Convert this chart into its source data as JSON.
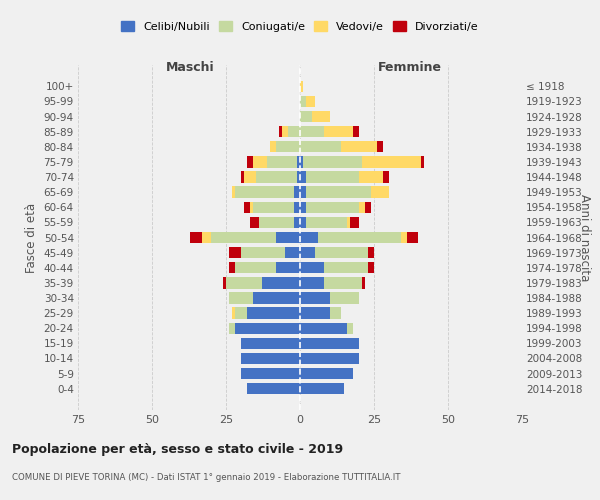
{
  "age_groups": [
    "0-4",
    "5-9",
    "10-14",
    "15-19",
    "20-24",
    "25-29",
    "30-34",
    "35-39",
    "40-44",
    "45-49",
    "50-54",
    "55-59",
    "60-64",
    "65-69",
    "70-74",
    "75-79",
    "80-84",
    "85-89",
    "90-94",
    "95-99",
    "100+"
  ],
  "birth_years": [
    "2014-2018",
    "2009-2013",
    "2004-2008",
    "1999-2003",
    "1994-1998",
    "1989-1993",
    "1984-1988",
    "1979-1983",
    "1974-1978",
    "1969-1973",
    "1964-1968",
    "1959-1963",
    "1954-1958",
    "1949-1953",
    "1944-1948",
    "1939-1943",
    "1934-1938",
    "1929-1933",
    "1924-1928",
    "1919-1923",
    "≤ 1918"
  ],
  "males": {
    "celibi": [
      18,
      20,
      20,
      20,
      22,
      18,
      16,
      13,
      8,
      5,
      8,
      2,
      2,
      2,
      1,
      1,
      0,
      0,
      0,
      0,
      0
    ],
    "coniugati": [
      0,
      0,
      0,
      0,
      2,
      4,
      8,
      12,
      14,
      15,
      22,
      12,
      14,
      20,
      14,
      10,
      8,
      4,
      0,
      0,
      0
    ],
    "vedovi": [
      0,
      0,
      0,
      0,
      0,
      1,
      0,
      0,
      0,
      0,
      3,
      0,
      1,
      1,
      4,
      5,
      2,
      2,
      0,
      0,
      0
    ],
    "divorziati": [
      0,
      0,
      0,
      0,
      0,
      0,
      0,
      1,
      2,
      4,
      4,
      3,
      2,
      0,
      1,
      2,
      0,
      1,
      0,
      0,
      0
    ]
  },
  "females": {
    "nubili": [
      15,
      18,
      20,
      20,
      16,
      10,
      10,
      8,
      8,
      5,
      6,
      2,
      2,
      2,
      2,
      1,
      0,
      0,
      0,
      0,
      0
    ],
    "coniugate": [
      0,
      0,
      0,
      0,
      2,
      4,
      10,
      13,
      15,
      18,
      28,
      14,
      18,
      22,
      18,
      20,
      14,
      8,
      4,
      2,
      0
    ],
    "vedove": [
      0,
      0,
      0,
      0,
      0,
      0,
      0,
      0,
      0,
      0,
      2,
      1,
      2,
      6,
      8,
      20,
      12,
      10,
      6,
      3,
      1
    ],
    "divorziate": [
      0,
      0,
      0,
      0,
      0,
      0,
      0,
      1,
      2,
      2,
      4,
      3,
      2,
      0,
      2,
      1,
      2,
      2,
      0,
      0,
      0
    ]
  },
  "colors": {
    "celibi": "#4472C4",
    "coniugati": "#C5D9A0",
    "vedovi": "#FFD966",
    "divorziati": "#C0000C"
  },
  "xlim": 75,
  "title": "Popolazione per età, sesso e stato civile - 2019",
  "subtitle": "COMUNE DI PIEVE TORINA (MC) - Dati ISTAT 1° gennaio 2019 - Elaborazione TUTTITALIA.IT",
  "ylabel_left": "Fasce di età",
  "ylabel_right": "Anni di nascita",
  "xlabel_left": "Maschi",
  "xlabel_right": "Femmine",
  "background_color": "#f0f0f0",
  "grid_color": "#cccccc"
}
